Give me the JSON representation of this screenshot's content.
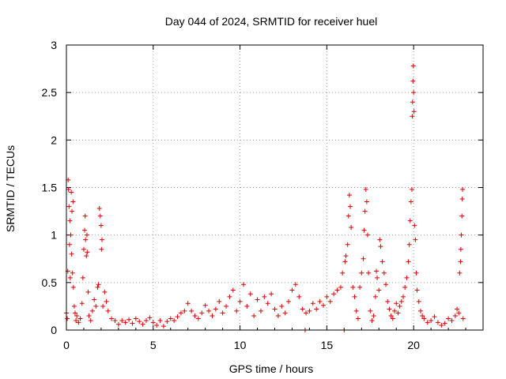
{
  "chart_data": {
    "type": "scatter",
    "title": "Day 044 of 2024, SRMTID for receiver huel",
    "xlabel": "GPS time / hours",
    "ylabel": "SRMTID / TECUs",
    "xlim": [
      0,
      24
    ],
    "ylim": [
      0,
      3
    ],
    "xticks": [
      0,
      5,
      10,
      15,
      20
    ],
    "xtick_labels": [
      "0",
      "5",
      "10",
      "15",
      "20"
    ],
    "yticks": [
      0,
      0.5,
      1,
      1.5,
      2,
      2.5,
      3
    ],
    "ytick_labels": [
      "0",
      "0.5",
      "1",
      "1.5",
      "2",
      "2.5",
      "3"
    ],
    "grid": true,
    "marker": "+",
    "color": "#e00000",
    "series": [
      {
        "name": "SRMTID",
        "points": [
          [
            0.0,
            0.18
          ],
          [
            0.05,
            0.12
          ],
          [
            0.08,
            0.62
          ],
          [
            0.1,
            1.58
          ],
          [
            0.12,
            1.48
          ],
          [
            0.15,
            1.3
          ],
          [
            0.18,
            0.9
          ],
          [
            0.2,
            1.15
          ],
          [
            0.22,
            0.55
          ],
          [
            0.25,
            1.0
          ],
          [
            0.28,
            1.45
          ],
          [
            0.3,
            0.8
          ],
          [
            0.32,
            1.25
          ],
          [
            0.35,
            0.6
          ],
          [
            0.38,
            1.35
          ],
          [
            0.4,
            0.45
          ],
          [
            0.45,
            0.25
          ],
          [
            0.5,
            0.18
          ],
          [
            0.55,
            0.1
          ],
          [
            0.6,
            0.15
          ],
          [
            0.7,
            0.08
          ],
          [
            0.8,
            0.12
          ],
          [
            0.9,
            0.28
          ],
          [
            0.95,
            0.55
          ],
          [
            1.0,
            0.85
          ],
          [
            1.05,
            1.05
          ],
          [
            1.08,
            1.2
          ],
          [
            1.1,
            0.95
          ],
          [
            1.15,
            0.78
          ],
          [
            1.18,
            1.0
          ],
          [
            1.2,
            0.82
          ],
          [
            1.25,
            0.4
          ],
          [
            1.3,
            0.15
          ],
          [
            1.4,
            0.1
          ],
          [
            1.5,
            0.2
          ],
          [
            1.6,
            0.32
          ],
          [
            1.7,
            0.25
          ],
          [
            1.8,
            0.45
          ],
          [
            1.85,
            0.48
          ],
          [
            1.9,
            1.28
          ],
          [
            1.95,
            1.2
          ],
          [
            2.0,
            1.1
          ],
          [
            2.02,
            0.85
          ],
          [
            2.05,
            0.95
          ],
          [
            2.1,
            0.25
          ],
          [
            2.2,
            0.4
          ],
          [
            2.3,
            0.3
          ],
          [
            2.4,
            0.2
          ],
          [
            2.6,
            0.12
          ],
          [
            2.8,
            0.1
          ],
          [
            3.0,
            0.06
          ],
          [
            3.2,
            0.1
          ],
          [
            3.4,
            0.08
          ],
          [
            3.6,
            0.11
          ],
          [
            3.8,
            0.07
          ],
          [
            4.0,
            0.12
          ],
          [
            4.2,
            0.09
          ],
          [
            4.4,
            0.06
          ],
          [
            4.6,
            0.1
          ],
          [
            4.8,
            0.13
          ],
          [
            5.0,
            0.08
          ],
          [
            5.2,
            0.05
          ],
          [
            5.4,
            0.1
          ],
          [
            5.6,
            0.04
          ],
          [
            5.8,
            0.09
          ],
          [
            6.0,
            0.12
          ],
          [
            6.2,
            0.1
          ],
          [
            6.4,
            0.14
          ],
          [
            6.6,
            0.18
          ],
          [
            6.8,
            0.2
          ],
          [
            7.0,
            0.28
          ],
          [
            7.2,
            0.2
          ],
          [
            7.4,
            0.15
          ],
          [
            7.6,
            0.12
          ],
          [
            7.8,
            0.18
          ],
          [
            8.0,
            0.26
          ],
          [
            8.2,
            0.2
          ],
          [
            8.4,
            0.15
          ],
          [
            8.6,
            0.22
          ],
          [
            8.8,
            0.3
          ],
          [
            9.0,
            0.18
          ],
          [
            9.2,
            0.25
          ],
          [
            9.4,
            0.35
          ],
          [
            9.6,
            0.42
          ],
          [
            9.8,
            0.2
          ],
          [
            10.0,
            0.3
          ],
          [
            10.2,
            0.48
          ],
          [
            10.4,
            0.25
          ],
          [
            10.6,
            0.38
          ],
          [
            10.8,
            0.15
          ],
          [
            11.0,
            0.32
          ],
          [
            11.2,
            0.2
          ],
          [
            11.4,
            0.35
          ],
          [
            11.6,
            0.28
          ],
          [
            11.8,
            0.38
          ],
          [
            12.0,
            0.22
          ],
          [
            12.2,
            0.15
          ],
          [
            12.4,
            0.25
          ],
          [
            12.6,
            0.18
          ],
          [
            12.8,
            0.3
          ],
          [
            13.0,
            0.42
          ],
          [
            13.2,
            0.48
          ],
          [
            13.4,
            0.35
          ],
          [
            13.6,
            0.22
          ],
          [
            13.75,
            0.0
          ],
          [
            13.8,
            0.18
          ],
          [
            14.0,
            0.2
          ],
          [
            14.2,
            0.28
          ],
          [
            14.4,
            0.22
          ],
          [
            14.6,
            0.3
          ],
          [
            14.8,
            0.26
          ],
          [
            15.0,
            0.35
          ],
          [
            15.2,
            0.3
          ],
          [
            15.4,
            0.38
          ],
          [
            15.6,
            0.42
          ],
          [
            15.8,
            0.45
          ],
          [
            15.9,
            0.6
          ],
          [
            16.0,
            0.0
          ],
          [
            16.05,
            0.72
          ],
          [
            16.1,
            0.78
          ],
          [
            16.2,
            0.9
          ],
          [
            16.25,
            1.2
          ],
          [
            16.3,
            1.42
          ],
          [
            16.35,
            1.3
          ],
          [
            16.4,
            1.08
          ],
          [
            16.5,
            0.45
          ],
          [
            16.6,
            0.35
          ],
          [
            16.7,
            0.2
          ],
          [
            16.8,
            0.12
          ],
          [
            16.9,
            0.45
          ],
          [
            17.0,
            0.6
          ],
          [
            17.1,
            0.75
          ],
          [
            17.15,
            1.05
          ],
          [
            17.2,
            1.25
          ],
          [
            17.25,
            1.48
          ],
          [
            17.3,
            1.35
          ],
          [
            17.35,
            1.0
          ],
          [
            17.4,
            0.6
          ],
          [
            17.5,
            0.2
          ],
          [
            17.6,
            0.1
          ],
          [
            17.7,
            0.15
          ],
          [
            17.8,
            0.35
          ],
          [
            17.85,
            0.62
          ],
          [
            17.9,
            0.55
          ],
          [
            18.0,
            0.42
          ],
          [
            18.05,
            0.95
          ],
          [
            18.1,
            0.88
          ],
          [
            18.2,
            0.72
          ],
          [
            18.3,
            0.6
          ],
          [
            18.4,
            0.48
          ],
          [
            18.5,
            0.3
          ],
          [
            18.6,
            0.22
          ],
          [
            18.7,
            0.15
          ],
          [
            18.8,
            0.12
          ],
          [
            18.9,
            0.2
          ],
          [
            19.0,
            0.28
          ],
          [
            19.1,
            0.18
          ],
          [
            19.2,
            0.25
          ],
          [
            19.3,
            0.3
          ],
          [
            19.4,
            0.35
          ],
          [
            19.5,
            0.45
          ],
          [
            19.6,
            0.55
          ],
          [
            19.7,
            0.72
          ],
          [
            19.75,
            0.9
          ],
          [
            19.8,
            1.15
          ],
          [
            19.85,
            1.35
          ],
          [
            19.9,
            1.48
          ],
          [
            19.92,
            2.25
          ],
          [
            19.94,
            2.4
          ],
          [
            19.96,
            2.62
          ],
          [
            19.98,
            2.78
          ],
          [
            20.0,
            2.5
          ],
          [
            20.02,
            2.3
          ],
          [
            20.05,
            1.1
          ],
          [
            20.1,
            0.95
          ],
          [
            20.15,
            0.6
          ],
          [
            20.2,
            0.42
          ],
          [
            20.3,
            0.3
          ],
          [
            20.4,
            0.2
          ],
          [
            20.5,
            0.15
          ],
          [
            20.6,
            0.12
          ],
          [
            20.8,
            0.08
          ],
          [
            21.0,
            0.1
          ],
          [
            21.2,
            0.14
          ],
          [
            21.4,
            0.08
          ],
          [
            21.6,
            0.05
          ],
          [
            21.8,
            0.07
          ],
          [
            22.0,
            0.12
          ],
          [
            22.2,
            0.1
          ],
          [
            22.4,
            0.15
          ],
          [
            22.5,
            0.22
          ],
          [
            22.6,
            0.18
          ],
          [
            22.65,
            0.6
          ],
          [
            22.7,
            0.72
          ],
          [
            22.72,
            0.85
          ],
          [
            22.75,
            1.0
          ],
          [
            22.78,
            1.2
          ],
          [
            22.8,
            1.38
          ],
          [
            22.82,
            1.48
          ],
          [
            22.85,
            0.12
          ]
        ]
      }
    ]
  }
}
